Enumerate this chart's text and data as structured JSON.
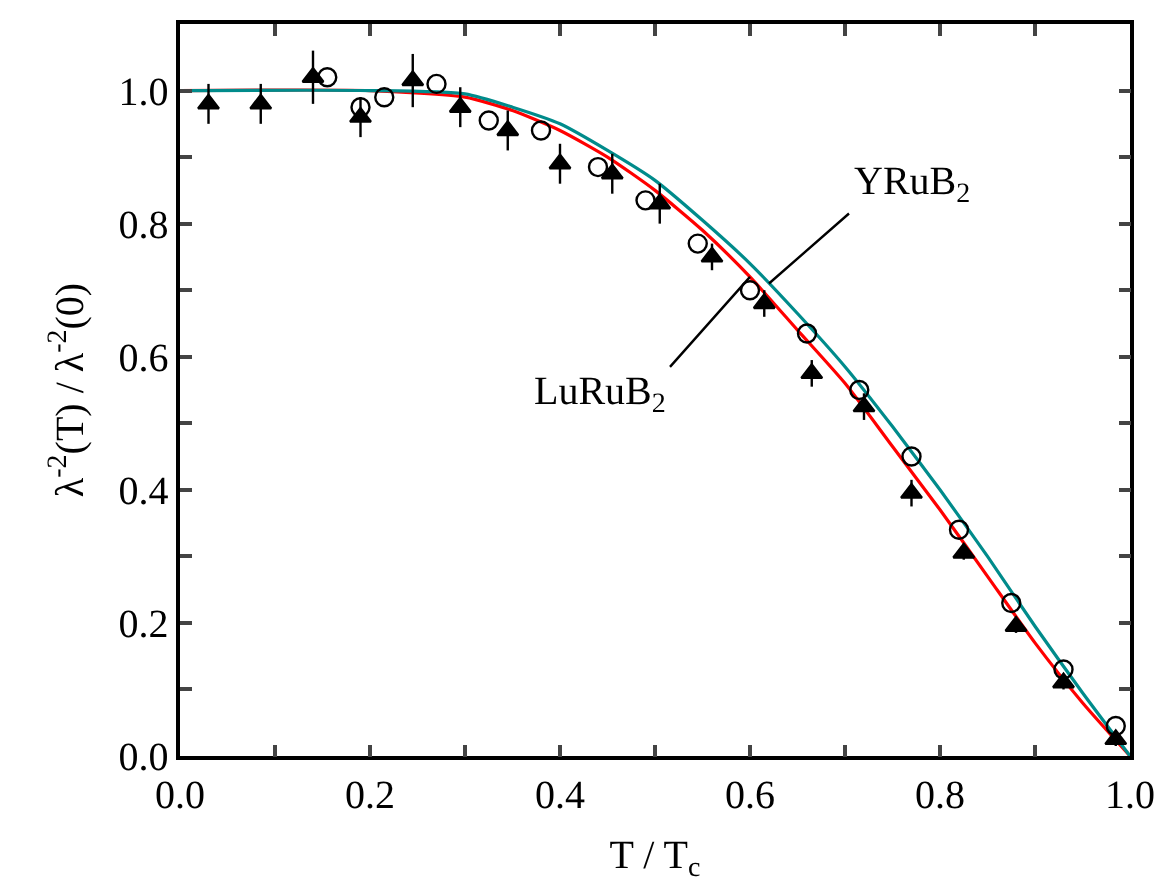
{
  "chart_data": {
    "type": "scatter",
    "xlabel": "T / T$_{c}$",
    "ylabel": "λ$^{-2}$(T) / λ$^{-2}$(0)",
    "xlim": [
      0,
      1
    ],
    "ylim": [
      0,
      1.1
    ],
    "xticks": [
      {
        "value": 0,
        "label": "0.0"
      },
      {
        "value": 0.1,
        "label": null
      },
      0.2,
      {
        "value": 0.3,
        "label": null
      },
      0.4,
      {
        "value": 0.5,
        "label": null
      },
      0.6,
      {
        "value": 0.7,
        "label": null
      },
      0.8,
      {
        "value": 0.9,
        "label": null
      },
      {
        "value": 1,
        "label": "1.0"
      }
    ],
    "yticks": [
      {
        "value": 0,
        "label": "0.0"
      },
      {
        "value": 0.1,
        "label": null
      },
      0.2,
      {
        "value": 0.3,
        "label": null
      },
      0.4,
      {
        "value": 0.5,
        "label": null
      },
      0.6,
      {
        "value": 0.7,
        "label": null
      },
      0.8,
      {
        "value": 0.9,
        "label": null
      },
      {
        "value": 1,
        "label": "1.0"
      }
    ],
    "grid": false,
    "series": [
      {
        "marker": "triangle",
        "color": "#000000",
        "x": [
          0.03,
          0.085,
          0.14,
          0.19,
          0.245,
          0.295,
          0.345,
          0.4,
          0.455,
          0.505,
          0.56,
          0.615,
          0.665,
          0.72,
          0.77,
          0.825,
          0.88,
          0.93,
          0.985
        ],
        "values": [
          0.98,
          0.98,
          1.02,
          0.96,
          1.015,
          0.975,
          0.94,
          0.89,
          0.875,
          0.83,
          0.75,
          0.68,
          0.575,
          0.525,
          0.395,
          0.305,
          0.195,
          0.11,
          0.025
        ],
        "errors": [
          0.03,
          0.03,
          0.04,
          0.03,
          0.04,
          0.03,
          0.03,
          0.03,
          0.03,
          0.03,
          0.02,
          0.02,
          0.02,
          0.02,
          0.02,
          0.01,
          0.01,
          0.01,
          0.01
        ]
      },
      {
        "marker": "circle",
        "color": "#000000",
        "x": [
          0.155,
          0.19,
          0.215,
          0.27,
          0.325,
          0.38,
          0.44,
          0.49,
          0.545,
          0.6,
          0.66,
          0.715,
          0.77,
          0.82,
          0.875,
          0.93,
          0.985
        ],
        "values": [
          1.02,
          0.975,
          0.99,
          1.01,
          0.955,
          0.94,
          0.885,
          0.835,
          0.77,
          0.7,
          0.635,
          0.55,
          0.45,
          0.34,
          0.23,
          0.13,
          0.045
        ]
      },
      {
        "type": "line",
        "marker": "none",
        "color": "#ff0000",
        "x": [
          0,
          0.2,
          0.3,
          0.35,
          0.4,
          0.45,
          0.5,
          0.55,
          0.6,
          0.65,
          0.7,
          0.75,
          0.8,
          0.85,
          0.9,
          0.95,
          1
        ],
        "values": [
          1,
          1,
          0.99,
          0.97,
          0.94,
          0.9,
          0.85,
          0.79,
          0.72,
          0.64,
          0.56,
          0.465,
          0.37,
          0.27,
          0.17,
          0.08,
          0
        ]
      },
      {
        "type": "line",
        "marker": "none",
        "color": "#008b8b",
        "x": [
          0,
          0.2,
          0.3,
          0.35,
          0.4,
          0.45,
          0.5,
          0.55,
          0.6,
          0.65,
          0.7,
          0.75,
          0.8,
          0.85,
          0.9,
          0.95,
          1
        ],
        "values": [
          1,
          1,
          0.995,
          0.975,
          0.95,
          0.91,
          0.865,
          0.805,
          0.74,
          0.665,
          0.585,
          0.495,
          0.4,
          0.3,
          0.195,
          0.095,
          0
        ]
      }
    ],
    "annotations": [
      {
        "text": "YRuB$_{2}$",
        "x": 0.62,
        "y": 0.71
      },
      {
        "text": "LuRuB$_{2}$",
        "x": 0.6,
        "y": 0.72
      }
    ]
  }
}
